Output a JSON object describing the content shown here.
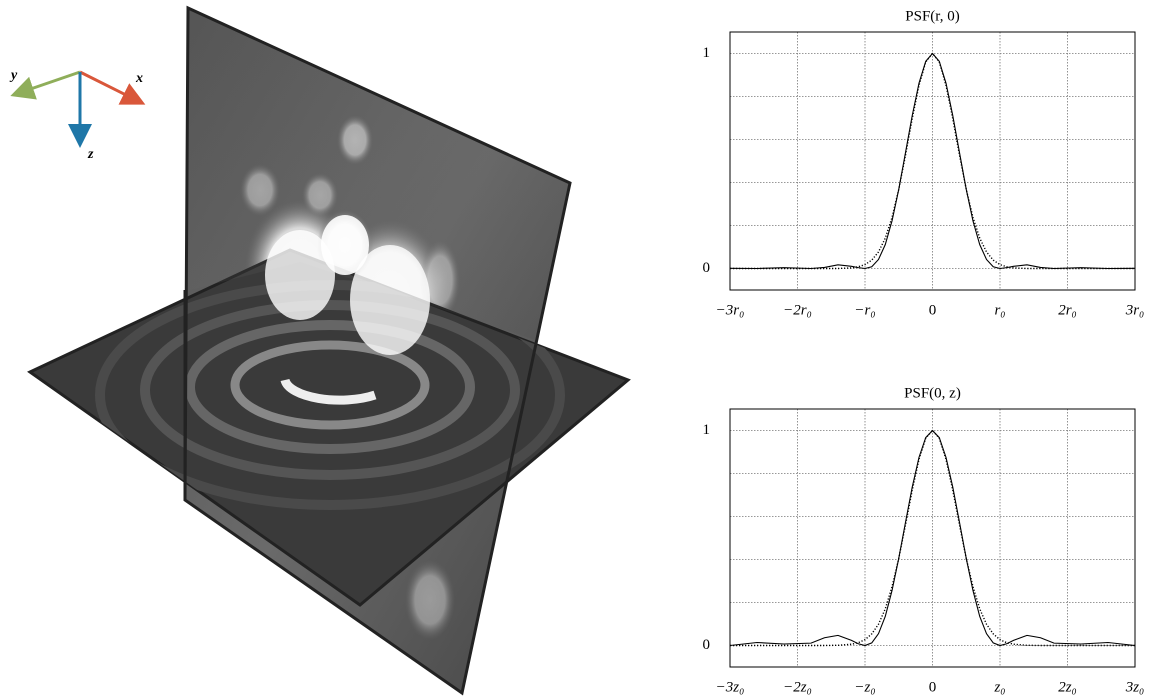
{
  "axis_labels": {
    "x": "x",
    "y": "y",
    "z": "z"
  },
  "chart_data": [
    {
      "type": "line",
      "title": "PSF(r, 0)",
      "x": [
        -3,
        -2.6,
        -2.2,
        -1.8,
        -1.6,
        -1.4,
        -1.2,
        -1.1,
        -1,
        -0.9,
        -0.8,
        -0.7,
        -0.6,
        -0.5,
        -0.4,
        -0.3,
        -0.2,
        -0.1,
        0,
        0.1,
        0.2,
        0.3,
        0.4,
        0.5,
        0.6,
        0.7,
        0.8,
        0.9,
        1,
        1.1,
        1.2,
        1.4,
        1.6,
        1.8,
        2.2,
        2.6,
        3
      ],
      "series": [
        {
          "style": "solid",
          "color": "#000000",
          "values": [
            0.001,
            0,
            0.004,
            0,
            0.005,
            0.017,
            0.01,
            0.004,
            0,
            0.008,
            0.042,
            0.111,
            0.221,
            0.368,
            0.539,
            0.712,
            0.862,
            0.964,
            1,
            0.964,
            0.862,
            0.712,
            0.539,
            0.368,
            0.221,
            0.111,
            0.042,
            0.008,
            0,
            0.004,
            0.01,
            0.017,
            0.005,
            0,
            0.004,
            0,
            0.001
          ]
        },
        {
          "style": "dotted",
          "color": "#000000",
          "values": [
            0,
            0,
            0,
            0,
            0,
            0,
            0.003,
            0.008,
            0.018,
            0.039,
            0.077,
            0.141,
            0.237,
            0.368,
            0.527,
            0.698,
            0.852,
            0.961,
            1,
            0.961,
            0.852,
            0.698,
            0.527,
            0.368,
            0.237,
            0.141,
            0.077,
            0.039,
            0.018,
            0.008,
            0.003,
            0,
            0,
            0,
            0,
            0,
            0
          ]
        }
      ],
      "xlim": [
        -3,
        3
      ],
      "xticks": [
        {
          "value": -3,
          "label": "−3r₀"
        },
        {
          "value": -2,
          "label": "−2r₀"
        },
        {
          "value": -1,
          "label": "−r₀"
        },
        0,
        {
          "value": 1,
          "label": "r₀"
        },
        {
          "value": 2,
          "label": "2r₀"
        },
        {
          "value": 3,
          "label": "3r₀"
        }
      ],
      "ylim": [
        -0.1,
        1.1
      ],
      "yticks": [
        0,
        1
      ],
      "minor_yticks": [
        0.2,
        0.4,
        0.6,
        0.8
      ],
      "grid": true
    },
    {
      "type": "line",
      "title": "PSF(0, z)",
      "x": [
        -3,
        -2.6,
        -2.2,
        -1.8,
        -1.6,
        -1.4,
        -1.2,
        -1.1,
        -1,
        -0.9,
        -0.8,
        -0.7,
        -0.6,
        -0.5,
        -0.4,
        -0.3,
        -0.2,
        -0.1,
        0,
        0.1,
        0.2,
        0.3,
        0.4,
        0.5,
        0.6,
        0.7,
        0.8,
        0.9,
        1,
        1.1,
        1.2,
        1.4,
        1.6,
        1.8,
        2.2,
        2.6,
        3
      ],
      "series": [
        {
          "style": "solid",
          "color": "#000000",
          "values": [
            0,
            0.014,
            0.007,
            0.011,
            0.036,
            0.047,
            0.024,
            0.008,
            0,
            0.012,
            0.055,
            0.135,
            0.255,
            0.405,
            0.573,
            0.737,
            0.875,
            0.967,
            1,
            0.967,
            0.875,
            0.737,
            0.573,
            0.405,
            0.255,
            0.135,
            0.055,
            0.012,
            0,
            0.008,
            0.024,
            0.047,
            0.036,
            0.011,
            0.007,
            0.014,
            0
          ]
        },
        {
          "style": "dotted",
          "color": "#000000",
          "values": [
            0,
            0,
            0,
            0,
            0,
            0.001,
            0.006,
            0.013,
            0.027,
            0.054,
            0.099,
            0.17,
            0.273,
            0.405,
            0.561,
            0.723,
            0.866,
            0.965,
            1,
            0.965,
            0.866,
            0.723,
            0.561,
            0.405,
            0.273,
            0.17,
            0.099,
            0.054,
            0.027,
            0.013,
            0.006,
            0.001,
            0,
            0,
            0,
            0,
            0
          ]
        }
      ],
      "xlim": [
        -3,
        3
      ],
      "xticks": [
        {
          "value": -3,
          "label": "−3z₀"
        },
        {
          "value": -2,
          "label": "−2z₀"
        },
        {
          "value": -1,
          "label": "−z₀"
        },
        0,
        {
          "value": 1,
          "label": "z₀"
        },
        {
          "value": 2,
          "label": "2z₀"
        },
        {
          "value": 3,
          "label": "3z₀"
        }
      ],
      "ylim": [
        -0.1,
        1.1
      ],
      "yticks": [
        0,
        1
      ],
      "minor_yticks": [
        0.2,
        0.4,
        0.6,
        0.8
      ],
      "grid": true
    }
  ]
}
